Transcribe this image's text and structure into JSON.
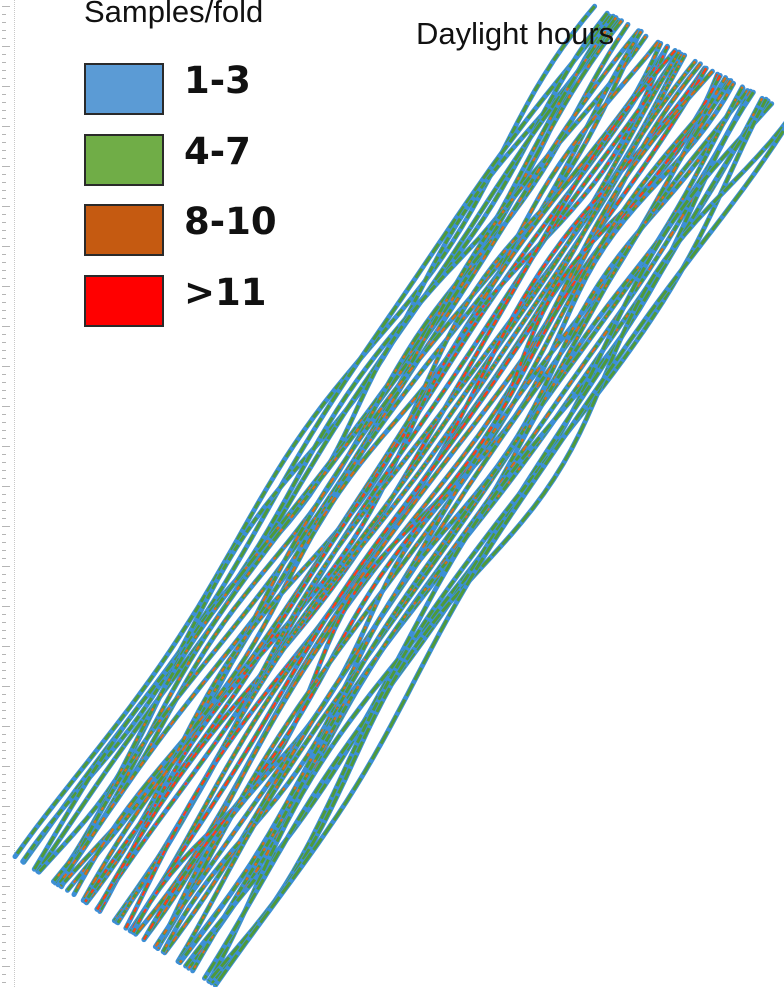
{
  "legend": {
    "title": "Samples/fold",
    "items": [
      {
        "label": "1-3",
        "color": "#5b9bd5"
      },
      {
        "label": "4-7",
        "color": "#70ad47"
      },
      {
        "label": "8-10",
        "color": "#c55a11"
      },
      {
        "label": ">11",
        "color": "#ff0000"
      }
    ]
  },
  "map": {
    "title": "Daylight hours"
  },
  "colors": {
    "lines_low": "#3d8fd6",
    "lines_mid": "#4f9a3a",
    "lines_high": "#d96a1e",
    "lines_max": "#ff3b1a"
  }
}
